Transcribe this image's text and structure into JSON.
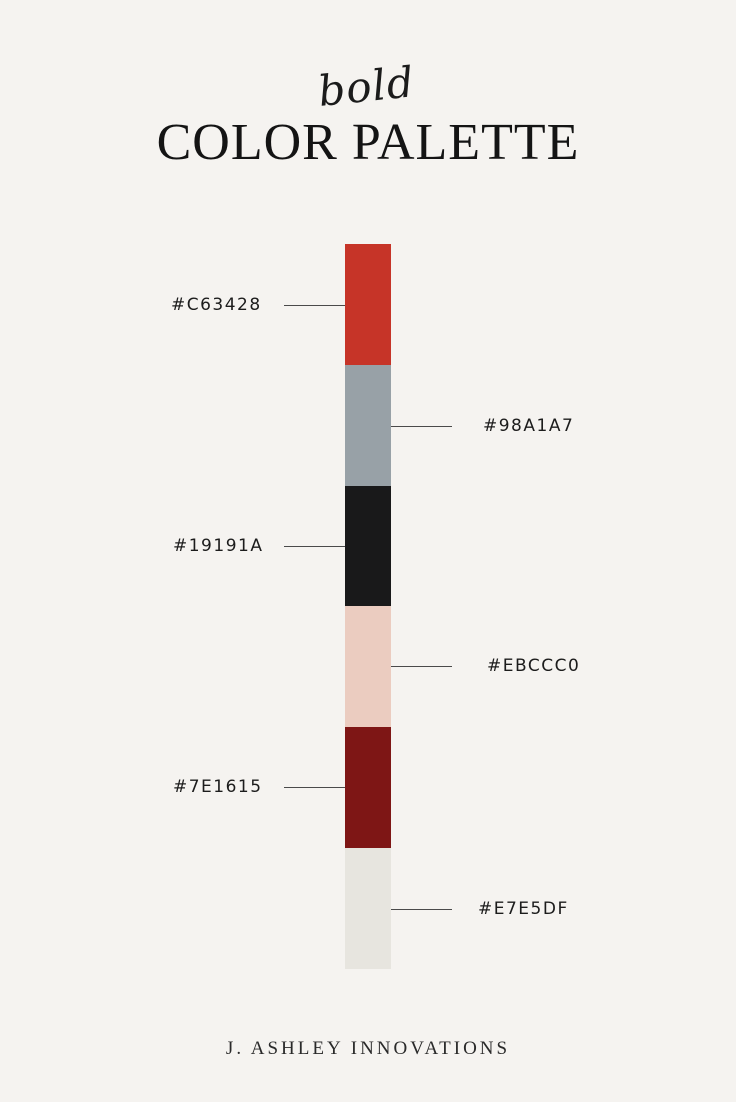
{
  "header": {
    "script_word": "bold",
    "title": "COLOR PALETTE"
  },
  "palette": {
    "swatches": [
      {
        "hex": "#C63428",
        "color": "#C63428",
        "label_side": "left"
      },
      {
        "hex": "#98A1A7",
        "color": "#98A1A7",
        "label_side": "right"
      },
      {
        "hex": "#19191A",
        "color": "#19191A",
        "label_side": "left"
      },
      {
        "hex": "#EBCCC0",
        "color": "#EBCCC0",
        "label_side": "right"
      },
      {
        "hex": "#7E1615",
        "color": "#7E1615",
        "label_side": "left"
      },
      {
        "hex": "#E7E5DF",
        "color": "#E7E5DF",
        "label_side": "right"
      }
    ]
  },
  "footer": {
    "brand": "J. ASHLEY INNOVATIONS"
  },
  "colors": {
    "background": "#F5F3F0",
    "text": "#141414"
  }
}
